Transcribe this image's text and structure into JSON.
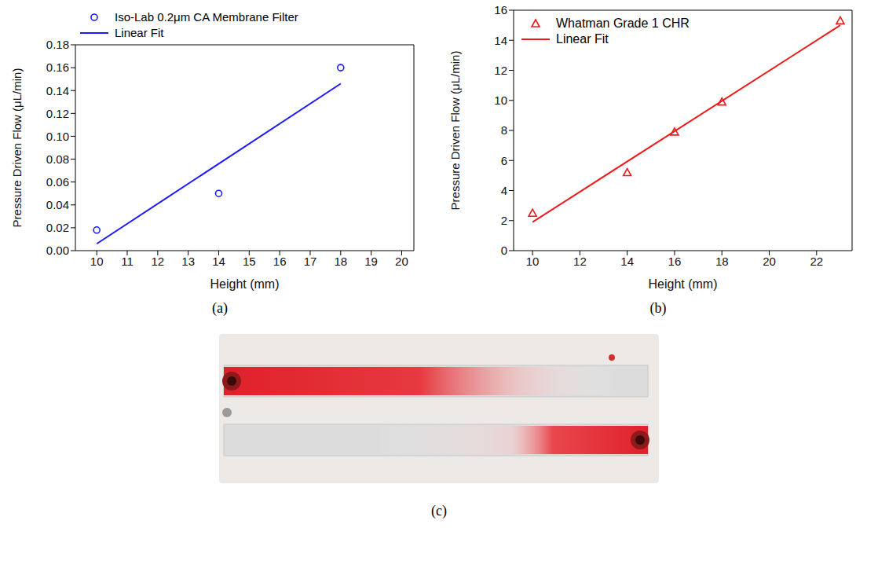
{
  "chart_data": [
    {
      "type": "scatter",
      "caption": "(a)",
      "x_label": "Height (mm)",
      "y_label": "Pressure Driven Flow (μL/min)",
      "xlim": [
        9.3,
        20.4
      ],
      "xticks": [
        10,
        11,
        12,
        13,
        14,
        15,
        16,
        17,
        18,
        19,
        20
      ],
      "ylim": [
        0,
        0.18
      ],
      "yticks": [
        {
          "value": 0,
          "label": "0.00"
        },
        0.02,
        0.04,
        0.06,
        0.08,
        {
          "value": 0.1,
          "label": "0.10"
        },
        0.12,
        0.14,
        0.16,
        0.18
      ],
      "legend": "top",
      "series": [
        {
          "name": "Iso-Lab 0.2μm CA Membrane Filter",
          "type": "scatter",
          "marker": "circle",
          "color": "#1a1aff",
          "x": [
            10,
            14,
            18
          ],
          "values": [
            0.018,
            0.05,
            0.16
          ]
        },
        {
          "name": "Linear Fit",
          "type": "line",
          "line_style": "solid",
          "color": "#1a1aff",
          "x": [
            10,
            18
          ],
          "values": [
            0.006,
            0.146
          ]
        }
      ]
    },
    {
      "type": "scatter",
      "caption": "(b)",
      "x_label": "Height (mm)",
      "y_label": "Pressure Driven Flow (μL/min)",
      "xlim": [
        9.2,
        23.5
      ],
      "xticks": [
        10,
        12,
        14,
        16,
        18,
        20,
        22
      ],
      "ylim": [
        0,
        16
      ],
      "yticks": [
        0,
        2,
        4,
        6,
        8,
        10,
        12,
        14,
        16
      ],
      "legend": "upper left",
      "series": [
        {
          "name": "Whatman Grade 1 CHR",
          "type": "scatter",
          "marker": "triangle",
          "color": "#f01818",
          "x": [
            10,
            14,
            16,
            18,
            23
          ],
          "values": [
            2.5,
            5.2,
            7.9,
            9.9,
            15.3
          ]
        },
        {
          "name": "Linear Fit",
          "type": "line",
          "line_style": "solid",
          "color": "#f01818",
          "x": [
            10,
            23
          ],
          "values": [
            1.9,
            15.0
          ]
        }
      ]
    }
  ],
  "photo": {
    "caption": "(c)"
  }
}
